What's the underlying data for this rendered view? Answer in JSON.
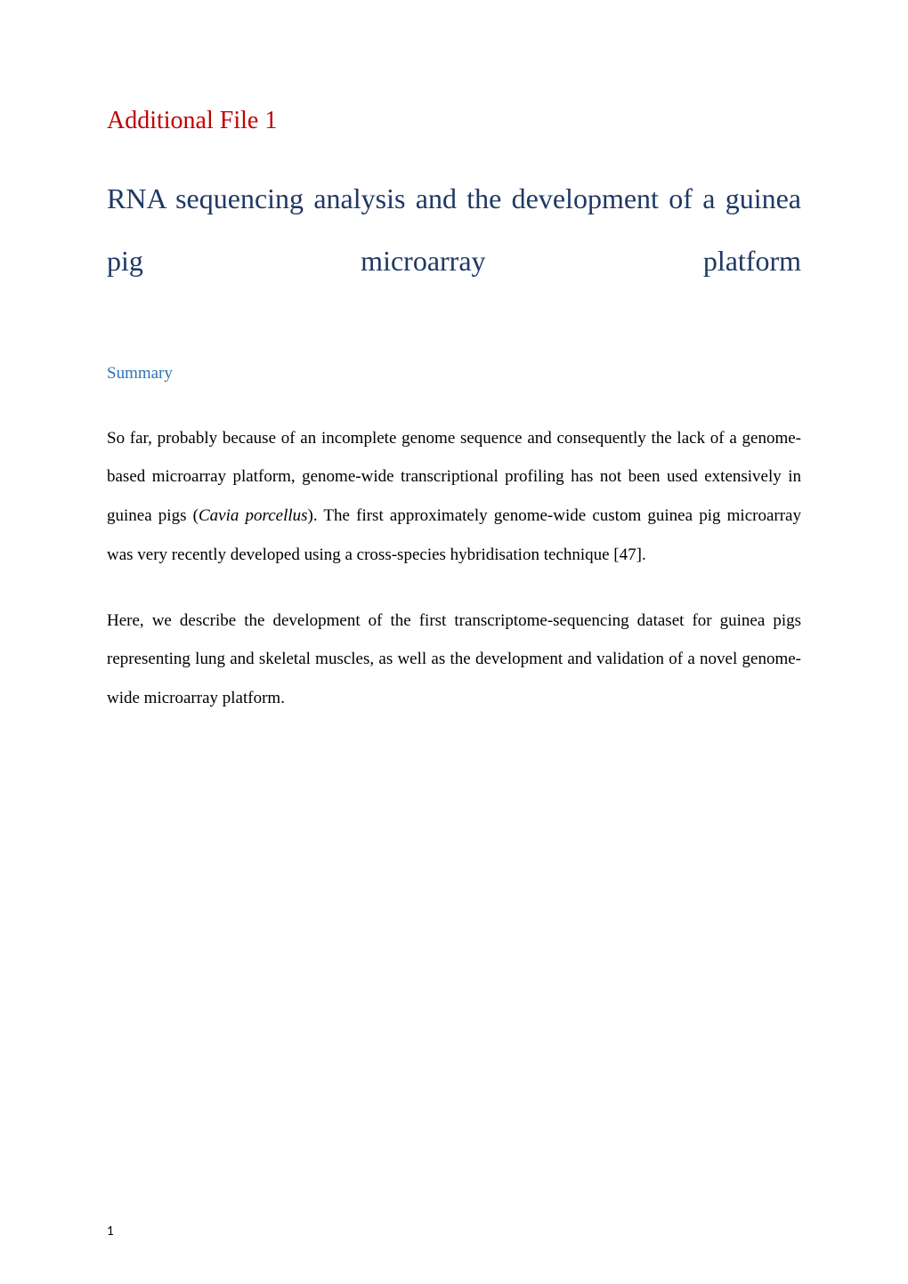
{
  "document": {
    "heading1": "Additional File 1",
    "heading2_line1": "RNA sequencing analysis and the development of a guinea",
    "heading2_line2": "pig microarray platform",
    "summary_heading": "Summary",
    "paragraph1_part1": "So far, probably because of an incomplete genome sequence and consequently the lack of a genome-based microarray platform, genome-wide transcriptional profiling has not been used extensively in guinea pigs (",
    "paragraph1_italic": "Cavia porcellus",
    "paragraph1_part2": "). The first approximately genome-wide custom guinea pig microarray was very recently developed using a cross-species hybridisation technique [47].",
    "paragraph2": "Here, we describe the development of the first transcriptome-sequencing dataset for guinea pigs representing lung and skeletal muscles, as well as the development and validation of a novel genome-wide microarray platform.",
    "page_number": "1"
  },
  "styles": {
    "heading1_color": "#c00000",
    "heading2_color": "#1f3864",
    "summary_heading_color": "#2e74b5",
    "body_text_color": "#000000",
    "background_color": "#ffffff",
    "heading1_fontsize": 28,
    "heading2_fontsize": 32,
    "summary_fontsize": 19,
    "body_fontsize": 19,
    "page_number_fontsize": 15,
    "font_family_body": "Times New Roman",
    "font_family_pagenum": "Calibri"
  }
}
